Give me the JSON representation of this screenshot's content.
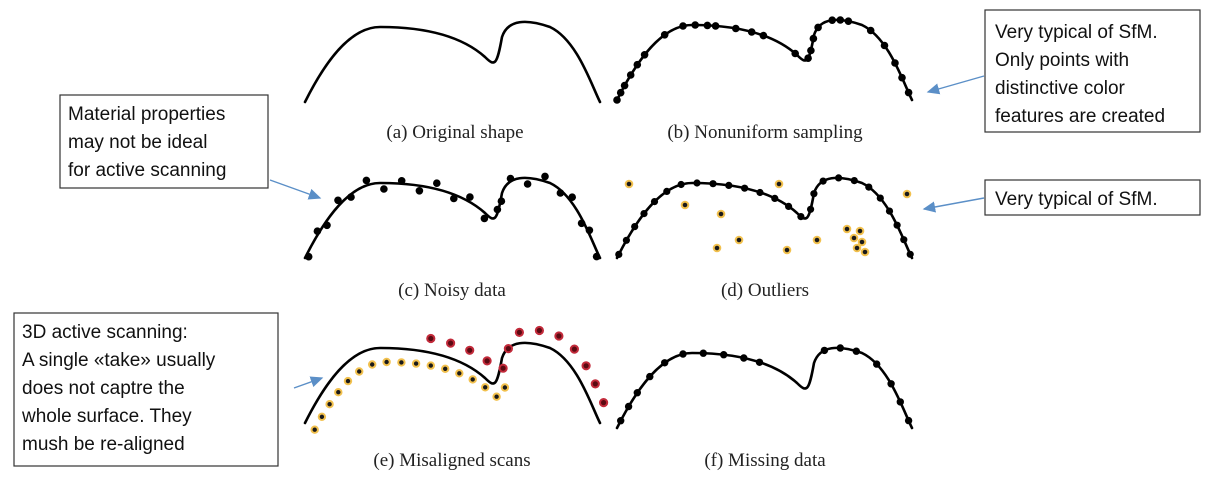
{
  "captions": {
    "a": "(a) Original shape",
    "b": "(b) Nonuniform sampling",
    "c": "(c) Noisy data",
    "d": "(d) Outliers",
    "e": "(e) Misaligned scans",
    "f": "(f) Missing data"
  },
  "notes": {
    "sfm_nonuniform": [
      "Very typical of SfM.",
      "Only points with",
      "distinctive color",
      "features are created"
    ],
    "material": [
      "Material properties",
      "may not be ideal",
      "for active scanning"
    ],
    "sfm_outliers": [
      "Very typical of SfM."
    ],
    "active_scanning": [
      "3D active scanning:",
      "A single «take» usually",
      "does not captre the",
      "whole surface. They",
      "mush be re-aligned"
    ]
  },
  "colors": {
    "curve": "#000000",
    "sample_point": "#000000",
    "outlier_fill": "#1a1a1a",
    "outlier_halo": "#f2c14e",
    "misaligned_scan_a_halo": "#f2c14e",
    "misaligned_scan_b_fill": "#5a0a12",
    "misaligned_scan_b_halo": "#c22a3a",
    "arrow": "#5b8fc7"
  }
}
